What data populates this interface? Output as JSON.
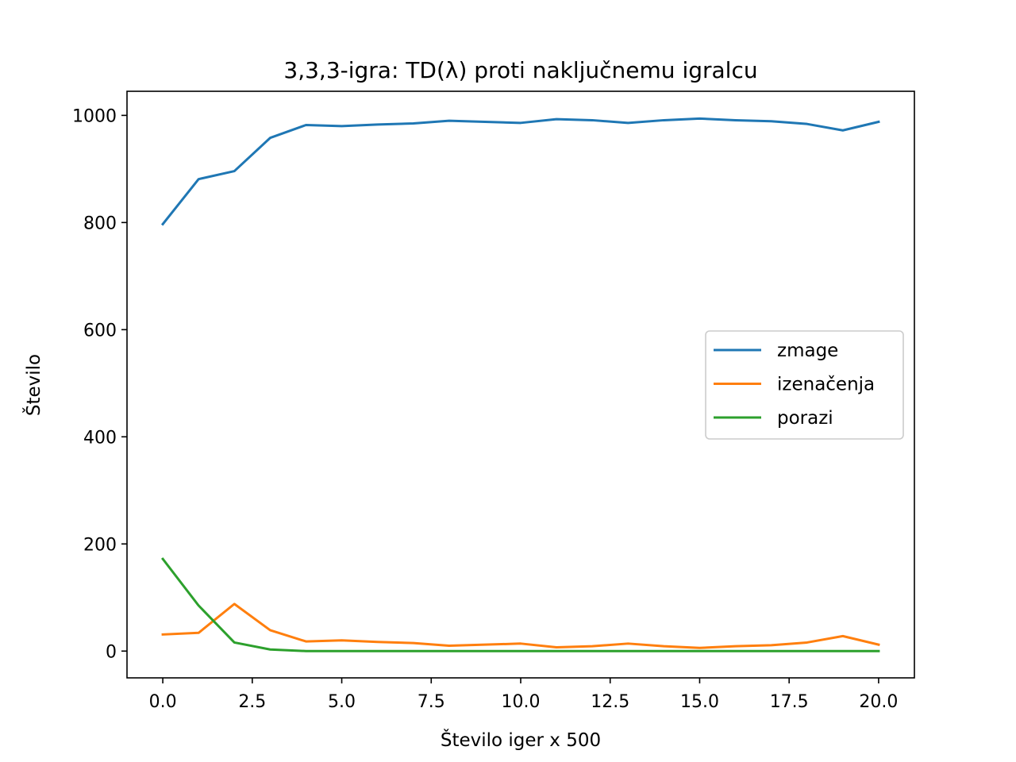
{
  "chart_data": {
    "type": "line",
    "title": "3,3,3-igra: TD(λ) proti naključnemu igralcu",
    "xlabel": "Število iger x 500",
    "ylabel": "Število",
    "xlim": [
      -1,
      21
    ],
    "ylim": [
      -50,
      1045
    ],
    "xticks": [
      0,
      2.5,
      5,
      7.5,
      10,
      12.5,
      15,
      17.5,
      20
    ],
    "xtick_labels": [
      "0.0",
      "2.5",
      "5.0",
      "7.5",
      "10.0",
      "12.5",
      "15.0",
      "17.5",
      "20.0"
    ],
    "yticks": [
      0,
      200,
      400,
      600,
      800,
      1000
    ],
    "ytick_labels": [
      "0",
      "200",
      "400",
      "600",
      "800",
      "1000"
    ],
    "grid": false,
    "legend_position": "center-right",
    "x": [
      0,
      1,
      2,
      3,
      4,
      5,
      6,
      7,
      8,
      9,
      10,
      11,
      12,
      13,
      14,
      15,
      16,
      17,
      18,
      19,
      20
    ],
    "series": [
      {
        "name": "zmage",
        "color": "#1f77b4",
        "values": [
          797,
          881,
          896,
          958,
          982,
          980,
          983,
          985,
          990,
          988,
          986,
          993,
          991,
          986,
          991,
          994,
          991,
          989,
          984,
          972,
          988
        ]
      },
      {
        "name": "izenačenja",
        "color": "#ff7f0e",
        "values": [
          31,
          34,
          88,
          39,
          18,
          20,
          17,
          15,
          10,
          12,
          14,
          7,
          9,
          14,
          9,
          6,
          9,
          11,
          16,
          28,
          12
        ]
      },
      {
        "name": "porazi",
        "color": "#2ca02c",
        "values": [
          172,
          85,
          16,
          3,
          0,
          0,
          0,
          0,
          0,
          0,
          0,
          0,
          0,
          0,
          0,
          0,
          0,
          0,
          0,
          0,
          0
        ]
      }
    ]
  }
}
